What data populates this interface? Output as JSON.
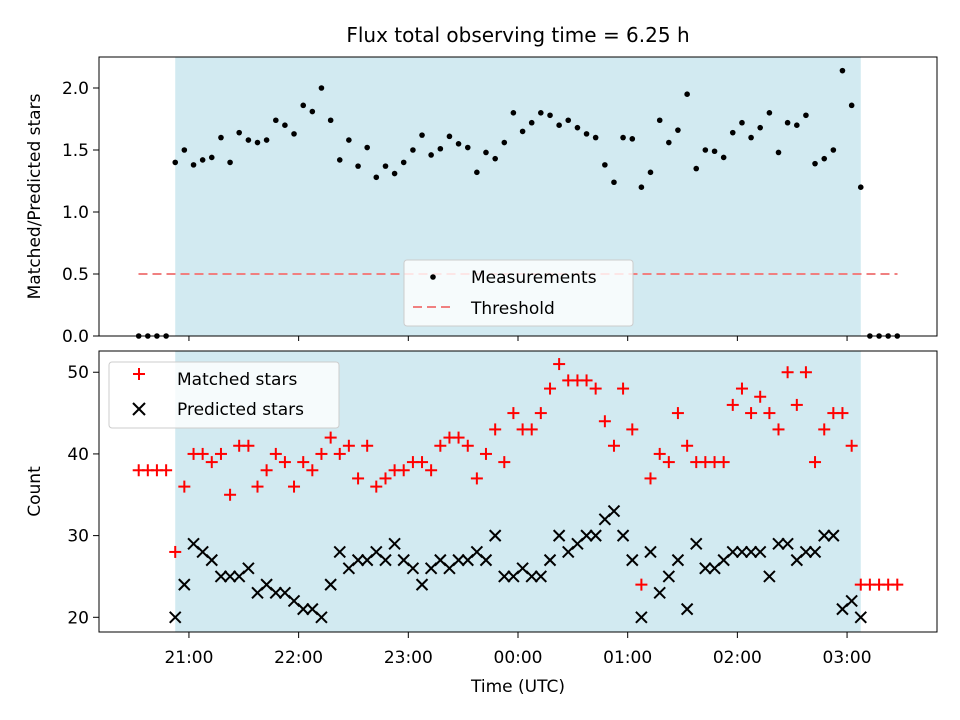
{
  "figure": {
    "title": "Flux total observing time = 6.25 h",
    "xlabel": "Time (UTC)"
  },
  "chart_data": [
    {
      "type": "scatter",
      "panel": "top",
      "title": "Flux total observing time = 6.25 h",
      "xlabel": "",
      "ylabel": "Matched/Predicted stars",
      "x_unit": "hours from 00:00 UTC",
      "xlim": [
        -3.82,
        3.82
      ],
      "ylim": [
        0,
        2.25
      ],
      "yticks": [
        0.0,
        0.5,
        1.0,
        1.5,
        2.0
      ],
      "ytick_labels": [
        "0.0",
        "0.5",
        "1.0",
        "1.5",
        "2.0"
      ],
      "observing_window": [
        -3.125,
        3.125
      ],
      "shade_color": "#add8e6",
      "grid": false,
      "legend": "lower center",
      "series": [
        {
          "name": "Measurements",
          "marker": "dot",
          "color": "#000000",
          "x": [
            -3.458,
            -3.375,
            -3.292,
            -3.208,
            -3.125,
            -3.042,
            -2.958,
            -2.875,
            -2.792,
            -2.708,
            -2.625,
            -2.542,
            -2.458,
            -2.375,
            -2.292,
            -2.208,
            -2.125,
            -2.042,
            -1.958,
            -1.875,
            -1.792,
            -1.708,
            -1.625,
            -1.542,
            -1.458,
            -1.375,
            -1.292,
            -1.208,
            -1.125,
            -1.042,
            -0.958,
            -0.875,
            -0.792,
            -0.708,
            -0.625,
            -0.542,
            -0.458,
            -0.375,
            -0.292,
            -0.208,
            -0.125,
            -0.042,
            0.042,
            0.125,
            0.208,
            0.292,
            0.375,
            0.458,
            0.542,
            0.625,
            0.708,
            0.792,
            0.875,
            0.958,
            1.042,
            1.125,
            1.208,
            1.292,
            1.375,
            1.458,
            1.542,
            1.625,
            1.708,
            1.792,
            1.875,
            1.958,
            2.042,
            2.125,
            2.208,
            2.292,
            2.375,
            2.458,
            2.542,
            2.625,
            2.708,
            2.792,
            2.875,
            2.958,
            3.042,
            3.125,
            3.208,
            3.292,
            3.375,
            3.458
          ],
          "y": [
            0.0,
            0.0,
            0.0,
            0.0,
            1.4,
            1.5,
            1.38,
            1.42,
            1.44,
            1.6,
            1.4,
            1.64,
            1.58,
            1.56,
            1.58,
            1.74,
            1.7,
            1.63,
            1.86,
            1.81,
            2.0,
            1.74,
            1.42,
            1.58,
            1.37,
            1.52,
            1.28,
            1.37,
            1.31,
            1.4,
            1.5,
            1.62,
            1.46,
            1.51,
            1.61,
            1.55,
            1.52,
            1.32,
            1.48,
            1.43,
            1.56,
            1.8,
            1.65,
            1.72,
            1.8,
            1.78,
            1.7,
            1.74,
            1.68,
            1.63,
            1.6,
            1.38,
            1.24,
            1.6,
            1.59,
            1.2,
            1.32,
            1.74,
            1.56,
            1.66,
            1.95,
            1.35,
            1.5,
            1.49,
            1.44,
            1.64,
            1.72,
            1.6,
            1.68,
            1.8,
            1.48,
            1.72,
            1.7,
            1.78,
            1.39,
            1.43,
            1.5,
            2.14,
            1.86,
            1.2,
            0.0,
            0.0,
            0.0,
            0.0
          ]
        },
        {
          "name": "Threshold",
          "line": "dashed",
          "color": "#f08080",
          "x": [
            -3.46,
            3.46
          ],
          "y": [
            0.5,
            0.5
          ]
        }
      ]
    },
    {
      "type": "scatter",
      "panel": "bottom",
      "xlabel": "Time (UTC)",
      "ylabel": "Count",
      "x_unit": "hours from 00:00 UTC",
      "xlim": [
        -3.82,
        3.82
      ],
      "ylim": [
        18.2,
        52.6
      ],
      "yticks": [
        20,
        30,
        40,
        50
      ],
      "ytick_labels": [
        "20",
        "30",
        "40",
        "50"
      ],
      "xticks": [
        -3,
        -2,
        -1,
        0,
        1,
        2,
        3
      ],
      "xtick_labels": [
        "21:00",
        "22:00",
        "23:00",
        "00:00",
        "01:00",
        "02:00",
        "03:00"
      ],
      "observing_window": [
        -3.125,
        3.125
      ],
      "shade_color": "#add8e6",
      "grid": false,
      "legend": "upper left",
      "series": [
        {
          "name": "Matched stars",
          "marker": "plus",
          "color": "#ff0000",
          "x": [
            -3.458,
            -3.375,
            -3.292,
            -3.208,
            -3.125,
            -3.042,
            -2.958,
            -2.875,
            -2.792,
            -2.708,
            -2.625,
            -2.542,
            -2.458,
            -2.375,
            -2.292,
            -2.208,
            -2.125,
            -2.042,
            -1.958,
            -1.875,
            -1.792,
            -1.708,
            -1.625,
            -1.542,
            -1.458,
            -1.375,
            -1.292,
            -1.208,
            -1.125,
            -1.042,
            -0.958,
            -0.875,
            -0.792,
            -0.708,
            -0.625,
            -0.542,
            -0.458,
            -0.375,
            -0.292,
            -0.208,
            -0.125,
            -0.042,
            0.042,
            0.125,
            0.208,
            0.292,
            0.375,
            0.458,
            0.542,
            0.625,
            0.708,
            0.792,
            0.875,
            0.958,
            1.042,
            1.125,
            1.208,
            1.292,
            1.375,
            1.458,
            1.542,
            1.625,
            1.708,
            1.792,
            1.875,
            1.958,
            2.042,
            2.125,
            2.208,
            2.292,
            2.375,
            2.458,
            2.542,
            2.625,
            2.708,
            2.792,
            2.875,
            2.958,
            3.042,
            3.125,
            3.208,
            3.292,
            3.375,
            3.458
          ],
          "y": [
            38,
            38,
            38,
            38,
            28,
            36,
            40,
            40,
            39,
            40,
            35,
            41,
            41,
            36,
            38,
            40,
            39,
            36,
            39,
            38,
            40,
            42,
            40,
            41,
            37,
            41,
            36,
            37,
            38,
            38,
            39,
            39,
            38,
            41,
            42,
            42,
            41,
            37,
            40,
            43,
            39,
            45,
            43,
            43,
            45,
            48,
            51,
            49,
            49,
            49,
            48,
            44,
            41,
            48,
            43,
            24,
            37,
            40,
            39,
            45,
            41,
            39,
            39,
            39,
            39,
            46,
            48,
            45,
            47,
            45,
            43,
            50,
            46,
            50,
            39,
            43,
            45,
            45,
            41,
            24,
            24,
            24,
            24,
            24
          ]
        },
        {
          "name": "Predicted stars",
          "marker": "x",
          "color": "#000000",
          "x": [
            -3.125,
            -3.042,
            -2.958,
            -2.875,
            -2.792,
            -2.708,
            -2.625,
            -2.542,
            -2.458,
            -2.375,
            -2.292,
            -2.208,
            -2.125,
            -2.042,
            -1.958,
            -1.875,
            -1.792,
            -1.708,
            -1.625,
            -1.542,
            -1.458,
            -1.375,
            -1.292,
            -1.208,
            -1.125,
            -1.042,
            -0.958,
            -0.875,
            -0.792,
            -0.708,
            -0.625,
            -0.542,
            -0.458,
            -0.375,
            -0.292,
            -0.208,
            -0.125,
            -0.042,
            0.042,
            0.125,
            0.208,
            0.292,
            0.375,
            0.458,
            0.542,
            0.625,
            0.708,
            0.792,
            0.875,
            0.958,
            1.042,
            1.125,
            1.208,
            1.292,
            1.375,
            1.458,
            1.542,
            1.625,
            1.708,
            1.792,
            1.875,
            1.958,
            2.042,
            2.125,
            2.208,
            2.292,
            2.375,
            2.458,
            2.542,
            2.625,
            2.708,
            2.792,
            2.875,
            2.958,
            3.042,
            3.125
          ],
          "y": [
            20,
            24,
            29,
            28,
            27,
            25,
            25,
            25,
            26,
            23,
            24,
            23,
            23,
            22,
            21,
            21,
            20,
            24,
            28,
            26,
            27,
            27,
            28,
            27,
            29,
            27,
            26,
            24,
            26,
            27,
            26,
            27,
            27,
            28,
            27,
            30,
            25,
            25,
            26,
            25,
            25,
            27,
            30,
            28,
            29,
            30,
            30,
            32,
            33,
            30,
            27,
            20,
            28,
            23,
            25,
            27,
            21,
            29,
            26,
            26,
            27,
            28,
            28,
            28,
            28,
            25,
            29,
            29,
            27,
            28,
            28,
            30,
            30,
            21,
            22,
            20
          ]
        }
      ]
    }
  ]
}
